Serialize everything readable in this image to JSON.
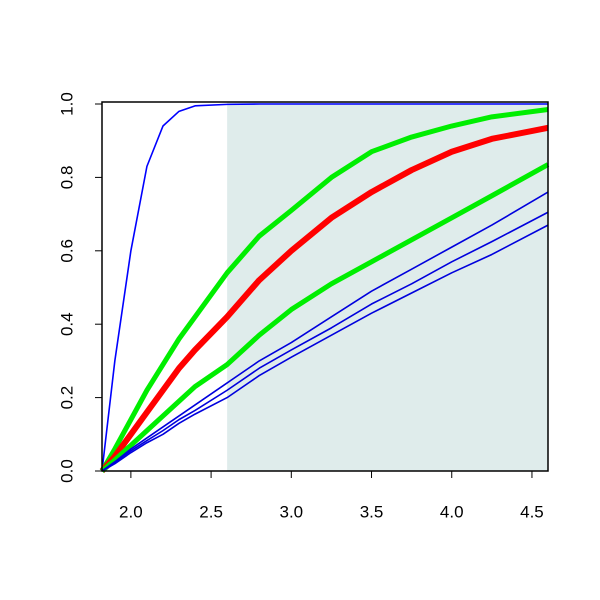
{
  "chart_data": {
    "type": "line",
    "xlim": [
      1.82,
      4.6
    ],
    "ylim": [
      0,
      1
    ],
    "xticks": [
      {
        "value": 2,
        "label": "2.0"
      },
      2.5,
      {
        "value": 3,
        "label": "3.0"
      },
      3.5,
      {
        "value": 4,
        "label": "4.0"
      },
      4.5
    ],
    "yticks": [
      {
        "value": 0,
        "label": "0.0"
      },
      0.2,
      0.4,
      0.6,
      0.8,
      {
        "value": 1,
        "label": "1.0"
      }
    ],
    "shaded_region": {
      "x": [
        2.6,
        4.6
      ],
      "color": "#dfeceb"
    },
    "x": [
      1.82,
      1.9,
      2.0,
      2.1,
      2.2,
      2.3,
      2.4,
      2.6,
      2.8,
      3.0,
      3.25,
      3.5,
      3.75,
      4.0,
      4.25,
      4.6
    ],
    "series": [
      {
        "color": "#0000ff",
        "width": 1.6,
        "values": [
          0,
          0.3,
          0.6,
          0.83,
          0.94,
          0.98,
          0.995,
          0.999,
          1,
          1,
          1,
          1,
          1,
          1,
          1,
          1
        ]
      },
      {
        "color": "#00ee00",
        "width": 5,
        "values": [
          0,
          0.06,
          0.14,
          0.22,
          0.29,
          0.36,
          0.42,
          0.54,
          0.64,
          0.71,
          0.8,
          0.87,
          0.91,
          0.94,
          0.965,
          0.985
        ]
      },
      {
        "color": "#ff0000",
        "width": 6,
        "values": [
          0,
          0.04,
          0.1,
          0.16,
          0.22,
          0.28,
          0.33,
          0.42,
          0.52,
          0.6,
          0.69,
          0.76,
          0.82,
          0.87,
          0.905,
          0.935
        ]
      },
      {
        "color": "#00ee00",
        "width": 5,
        "values": [
          0,
          0.03,
          0.07,
          0.11,
          0.15,
          0.19,
          0.23,
          0.29,
          0.37,
          0.44,
          0.51,
          0.57,
          0.63,
          0.69,
          0.75,
          0.835
        ]
      },
      {
        "color": "#0000dd",
        "width": 1.6,
        "values": [
          0,
          0.025,
          0.06,
          0.09,
          0.12,
          0.15,
          0.18,
          0.24,
          0.3,
          0.35,
          0.42,
          0.49,
          0.55,
          0.61,
          0.67,
          0.76
        ]
      },
      {
        "color": "#0000dd",
        "width": 1.6,
        "values": [
          0,
          0.023,
          0.055,
          0.083,
          0.11,
          0.14,
          0.165,
          0.22,
          0.28,
          0.33,
          0.39,
          0.455,
          0.51,
          0.57,
          0.625,
          0.705
        ]
      },
      {
        "color": "#0000dd",
        "width": 1.6,
        "values": [
          0,
          0.02,
          0.05,
          0.077,
          0.1,
          0.13,
          0.155,
          0.2,
          0.26,
          0.31,
          0.37,
          0.43,
          0.485,
          0.54,
          0.59,
          0.67
        ]
      }
    ]
  }
}
